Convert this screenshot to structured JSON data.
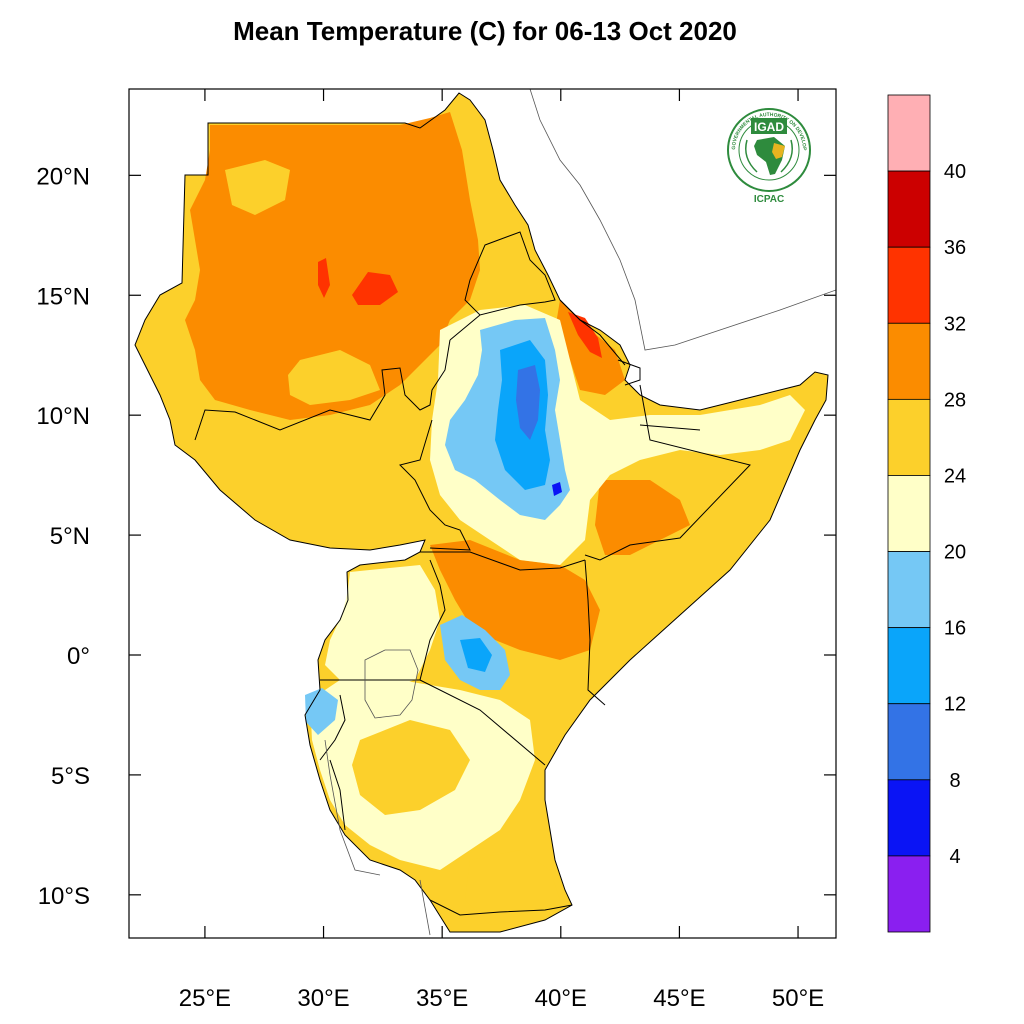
{
  "title": "Mean Temperature (C) for 06-13 Oct 2020",
  "map": {
    "lon_range": [
      21.8,
      51.6
    ],
    "lat_range": [
      -11.8,
      23.6
    ],
    "lon_ticks": [
      {
        "value": 25,
        "label": "25°E"
      },
      {
        "value": 30,
        "label": "30°E"
      },
      {
        "value": 35,
        "label": "35°E"
      },
      {
        "value": 40,
        "label": "40°E"
      },
      {
        "value": 45,
        "label": "45°E"
      },
      {
        "value": 50,
        "label": "50°E"
      }
    ],
    "lat_ticks": [
      {
        "value": 20,
        "label": "20°N"
      },
      {
        "value": 15,
        "label": "15°N"
      },
      {
        "value": 10,
        "label": "10°N"
      },
      {
        "value": 5,
        "label": "5°N"
      },
      {
        "value": 0,
        "label": "0°"
      },
      {
        "value": -5,
        "label": "5°S"
      },
      {
        "value": -10,
        "label": "10°S"
      }
    ]
  },
  "colorbar": {
    "bins": [
      {
        "from": null,
        "to": 4,
        "color": "#8a1ff0"
      },
      {
        "from": 4,
        "to": 8,
        "color": "#0a14f5"
      },
      {
        "from": 8,
        "to": 12,
        "color": "#3373e6"
      },
      {
        "from": 12,
        "to": 16,
        "color": "#0aa5fa"
      },
      {
        "from": 16,
        "to": 20,
        "color": "#75c8f5"
      },
      {
        "from": 20,
        "to": 24,
        "color": "#ffffc8"
      },
      {
        "from": 24,
        "to": 28,
        "color": "#fcd02b"
      },
      {
        "from": 28,
        "to": 32,
        "color": "#fb8c00"
      },
      {
        "from": 32,
        "to": 36,
        "color": "#ff3300"
      },
      {
        "from": 36,
        "to": 40,
        "color": "#cc0000"
      },
      {
        "from": 40,
        "to": null,
        "color": "#ffafb4"
      }
    ],
    "labels": [
      "4",
      "8",
      "12",
      "16",
      "20",
      "24",
      "28",
      "32",
      "36",
      "40"
    ]
  },
  "logo": {
    "name": "IGAD",
    "org": "ICPAC",
    "ring_text": "INTERGOVERNMENTAL AUTHORITY ON DEVELOPMENT",
    "colors": {
      "green": "#2e8b3d",
      "gold": "#e7b420"
    }
  }
}
